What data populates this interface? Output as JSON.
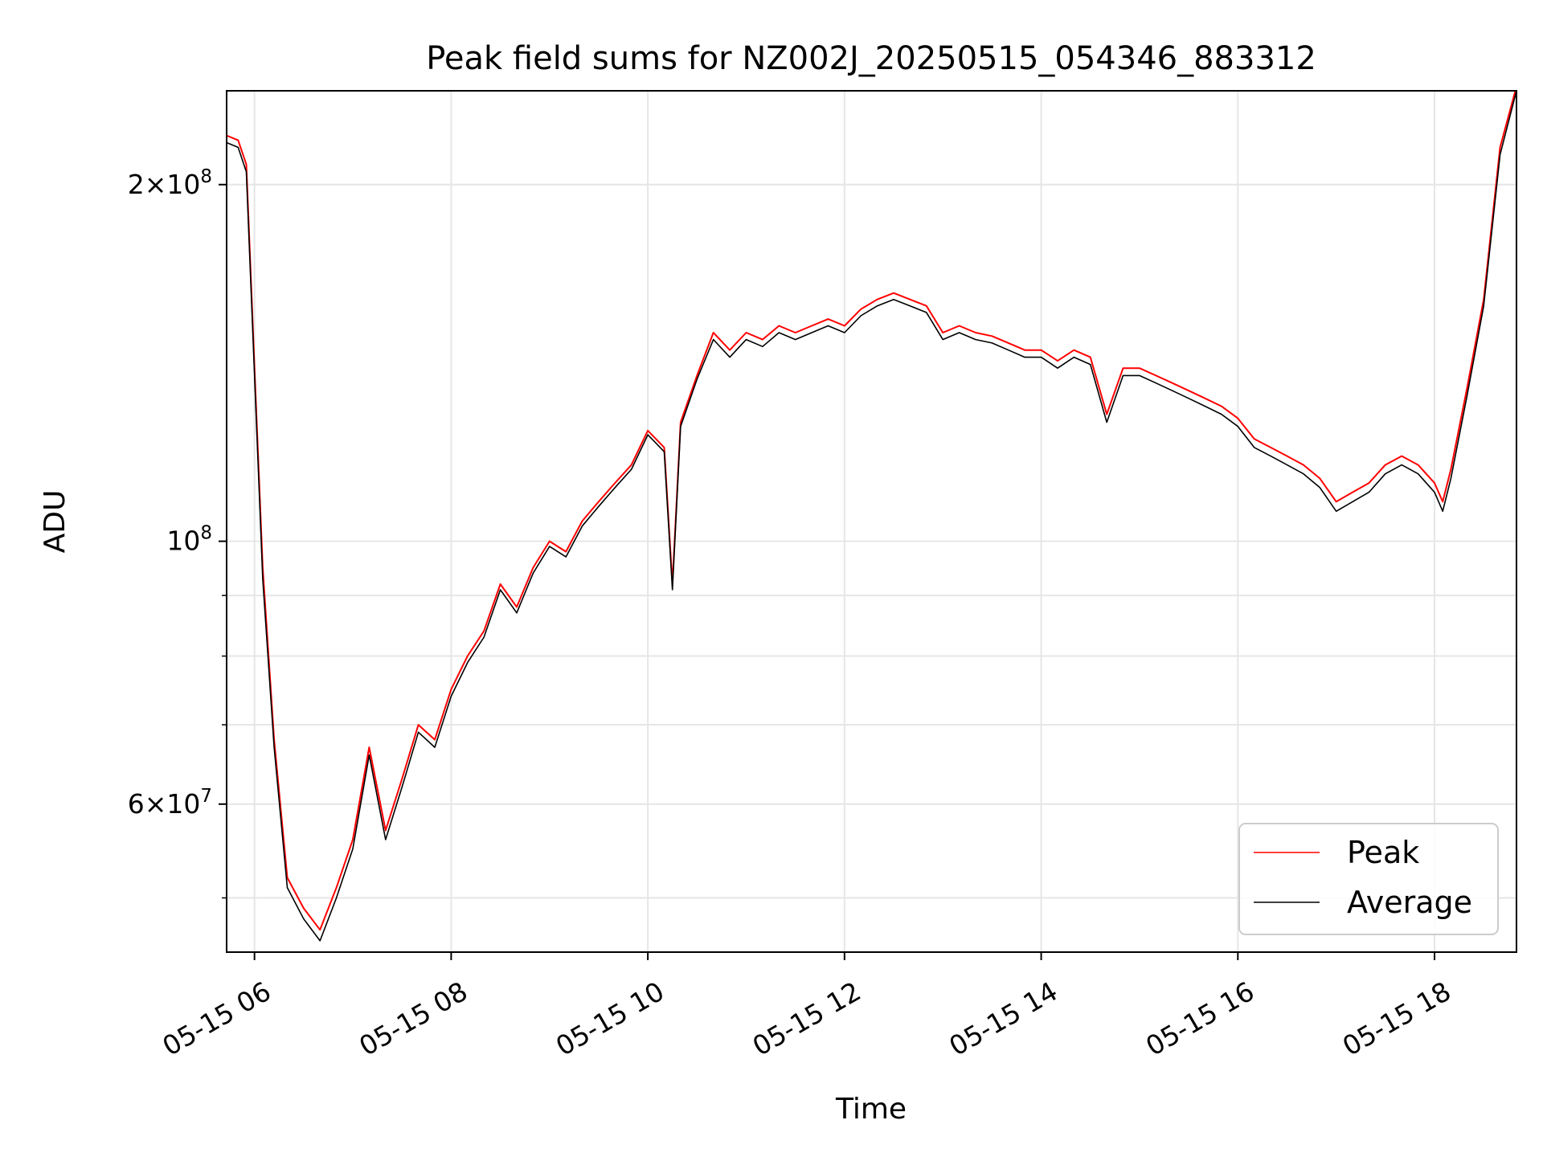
{
  "chart_data": {
    "type": "line",
    "title": "Peak field sums for NZ002J_20250515_054346_883312",
    "xlabel": "Time",
    "ylabel": "ADU",
    "y_scale": "log",
    "grid": true,
    "legend_position": "lower-right",
    "xlim": [
      "05-15 05:43",
      "05-15 18:50"
    ],
    "ylim": [
      45000000,
      240000000
    ],
    "x_ticks": [
      "05-15 06",
      "05-15 08",
      "05-15 10",
      "05-15 12",
      "05-15 14",
      "05-15 16",
      "05-15 18"
    ],
    "y_ticks": [
      {
        "value": 200000000,
        "base": "2×10",
        "exp": "8"
      },
      {
        "value": 100000000,
        "base": "10",
        "exp": "8"
      },
      {
        "value": 60000000,
        "base": "6×10",
        "exp": "7"
      }
    ],
    "series": [
      {
        "name": "Peak",
        "color": "#ff0000",
        "x": [
          "05-15 05:43",
          "05-15 05:50",
          "05-15 05:55",
          "05-15 06:00",
          "05-15 06:05",
          "05-15 06:12",
          "05-15 06:20",
          "05-15 06:30",
          "05-15 06:40",
          "05-15 06:50",
          "05-15 07:00",
          "05-15 07:10",
          "05-15 07:20",
          "05-15 07:30",
          "05-15 07:40",
          "05-15 07:50",
          "05-15 08:00",
          "05-15 08:10",
          "05-15 08:20",
          "05-15 08:30",
          "05-15 08:40",
          "05-15 08:50",
          "05-15 09:00",
          "05-15 09:10",
          "05-15 09:20",
          "05-15 09:30",
          "05-15 09:40",
          "05-15 09:50",
          "05-15 10:00",
          "05-15 10:10",
          "05-15 10:15",
          "05-15 10:20",
          "05-15 10:30",
          "05-15 10:40",
          "05-15 10:50",
          "05-15 11:00",
          "05-15 11:10",
          "05-15 11:20",
          "05-15 11:30",
          "05-15 11:40",
          "05-15 11:50",
          "05-15 12:00",
          "05-15 12:10",
          "05-15 12:20",
          "05-15 12:30",
          "05-15 12:40",
          "05-15 12:50",
          "05-15 13:00",
          "05-15 13:10",
          "05-15 13:20",
          "05-15 13:30",
          "05-15 13:40",
          "05-15 13:50",
          "05-15 14:00",
          "05-15 14:10",
          "05-15 14:20",
          "05-15 14:30",
          "05-15 14:40",
          "05-15 14:50",
          "05-15 15:00",
          "05-15 15:10",
          "05-15 15:20",
          "05-15 15:30",
          "05-15 15:40",
          "05-15 15:50",
          "05-15 16:00",
          "05-15 16:10",
          "05-15 16:20",
          "05-15 16:30",
          "05-15 16:40",
          "05-15 16:50",
          "05-15 17:00",
          "05-15 17:10",
          "05-15 17:20",
          "05-15 17:30",
          "05-15 17:40",
          "05-15 17:50",
          "05-15 18:00",
          "05-15 18:05",
          "05-15 18:10",
          "05-15 18:20",
          "05-15 18:30",
          "05-15 18:40",
          "05-15 18:50"
        ],
        "values": [
          220000000,
          218000000,
          208000000,
          140000000,
          95000000,
          68000000,
          52000000,
          49000000,
          47000000,
          51000000,
          56000000,
          67000000,
          57000000,
          63000000,
          70000000,
          68000000,
          75000000,
          80000000,
          84000000,
          92000000,
          88000000,
          95000000,
          100000000,
          98000000,
          104000000,
          108000000,
          112000000,
          116000000,
          124000000,
          120000000,
          92000000,
          126000000,
          138000000,
          150000000,
          145000000,
          150000000,
          148000000,
          152000000,
          150000000,
          152000000,
          154000000,
          152000000,
          157000000,
          160000000,
          162000000,
          160000000,
          158000000,
          150000000,
          152000000,
          150000000,
          149000000,
          147000000,
          145000000,
          145000000,
          142000000,
          145000000,
          143000000,
          128000000,
          140000000,
          140000000,
          138000000,
          136000000,
          134000000,
          132000000,
          130000000,
          127000000,
          122000000,
          120000000,
          118000000,
          116000000,
          113000000,
          108000000,
          110000000,
          112000000,
          116000000,
          118000000,
          116000000,
          112000000,
          108000000,
          115000000,
          135000000,
          160000000,
          215000000,
          242000000
        ]
      },
      {
        "name": "Average",
        "color": "#000000",
        "x": [
          "05-15 05:43",
          "05-15 05:50",
          "05-15 05:55",
          "05-15 06:00",
          "05-15 06:05",
          "05-15 06:12",
          "05-15 06:20",
          "05-15 06:30",
          "05-15 06:40",
          "05-15 06:50",
          "05-15 07:00",
          "05-15 07:10",
          "05-15 07:20",
          "05-15 07:30",
          "05-15 07:40",
          "05-15 07:50",
          "05-15 08:00",
          "05-15 08:10",
          "05-15 08:20",
          "05-15 08:30",
          "05-15 08:40",
          "05-15 08:50",
          "05-15 09:00",
          "05-15 09:10",
          "05-15 09:20",
          "05-15 09:30",
          "05-15 09:40",
          "05-15 09:50",
          "05-15 10:00",
          "05-15 10:10",
          "05-15 10:15",
          "05-15 10:20",
          "05-15 10:30",
          "05-15 10:40",
          "05-15 10:50",
          "05-15 11:00",
          "05-15 11:10",
          "05-15 11:20",
          "05-15 11:30",
          "05-15 11:40",
          "05-15 11:50",
          "05-15 12:00",
          "05-15 12:10",
          "05-15 12:20",
          "05-15 12:30",
          "05-15 12:40",
          "05-15 12:50",
          "05-15 13:00",
          "05-15 13:10",
          "05-15 13:20",
          "05-15 13:30",
          "05-15 13:40",
          "05-15 13:50",
          "05-15 14:00",
          "05-15 14:10",
          "05-15 14:20",
          "05-15 14:30",
          "05-15 14:40",
          "05-15 14:50",
          "05-15 15:00",
          "05-15 15:10",
          "05-15 15:20",
          "05-15 15:30",
          "05-15 15:40",
          "05-15 15:50",
          "05-15 16:00",
          "05-15 16:10",
          "05-15 16:20",
          "05-15 16:30",
          "05-15 16:40",
          "05-15 16:50",
          "05-15 17:00",
          "05-15 17:10",
          "05-15 17:20",
          "05-15 17:30",
          "05-15 17:40",
          "05-15 17:50",
          "05-15 18:00",
          "05-15 18:05",
          "05-15 18:10",
          "05-15 18:20",
          "05-15 18:30",
          "05-15 18:40",
          "05-15 18:50"
        ],
        "values": [
          217000000,
          215000000,
          205000000,
          138000000,
          93000000,
          67000000,
          51000000,
          48000000,
          46000000,
          50000000,
          55000000,
          66000000,
          56000000,
          62000000,
          69000000,
          67000000,
          74000000,
          79000000,
          83000000,
          91000000,
          87000000,
          94000000,
          99000000,
          97000000,
          103000000,
          107000000,
          111000000,
          115000000,
          123000000,
          119000000,
          91000000,
          125000000,
          137000000,
          148000000,
          143000000,
          148000000,
          146000000,
          150000000,
          148000000,
          150000000,
          152000000,
          150000000,
          155000000,
          158000000,
          160000000,
          158000000,
          156000000,
          148000000,
          150000000,
          148000000,
          147000000,
          145000000,
          143000000,
          143000000,
          140000000,
          143000000,
          141000000,
          126000000,
          138000000,
          138000000,
          136000000,
          134000000,
          132000000,
          130000000,
          128000000,
          125000000,
          120000000,
          118000000,
          116000000,
          114000000,
          111000000,
          106000000,
          108000000,
          110000000,
          114000000,
          116000000,
          114000000,
          110000000,
          106000000,
          113000000,
          133000000,
          158000000,
          212000000,
          240000000
        ]
      }
    ]
  }
}
